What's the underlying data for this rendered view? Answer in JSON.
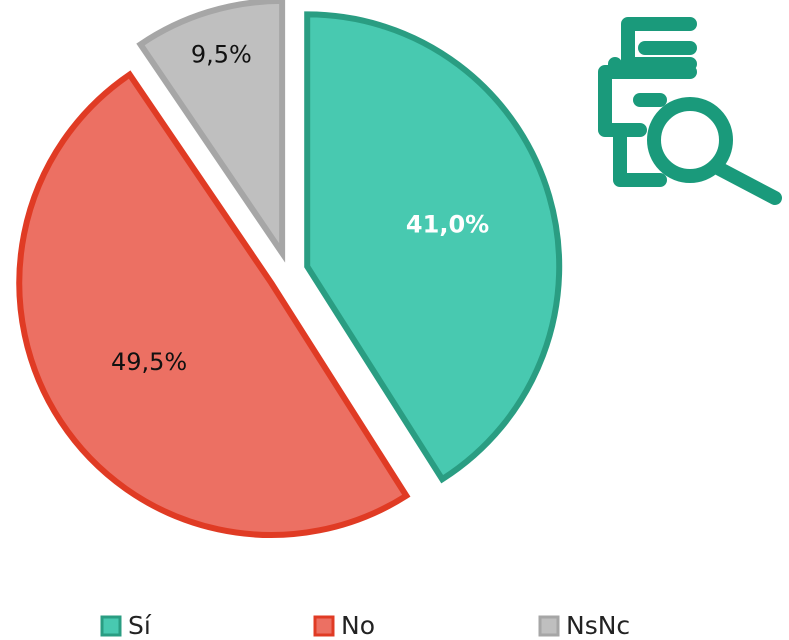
{
  "chart_data": {
    "type": "pie",
    "categories": [
      "Sí",
      "No",
      "NsNc"
    ],
    "values": [
      41.0,
      49.5,
      9.5
    ],
    "value_labels": [
      "41,0%",
      "49,5%",
      "9,5%"
    ],
    "colors": [
      "#48c9b0",
      "#ec7063",
      "#bfbfbf"
    ],
    "stroke_colors": [
      "#2a9d82",
      "#e03b24",
      "#a6a6a6"
    ],
    "legend": "bottom"
  }
}
